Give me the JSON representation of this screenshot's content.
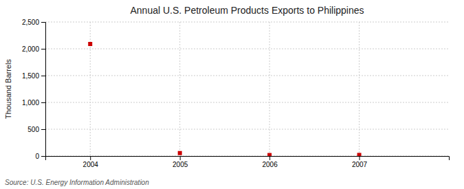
{
  "chart_data": {
    "type": "scatter",
    "title": "Annual U.S. Petroleum Products Exports to Philippines",
    "y_label": "Thousand Barrels",
    "annotations": [
      "Source: U.S. Energy Information Administration"
    ],
    "x": [
      2004,
      2005,
      2006,
      2007
    ],
    "values": [
      2090,
      55,
      18,
      20
    ],
    "color": "#cc0000",
    "marker": "square",
    "xlim": [
      2003.5,
      2008.0
    ],
    "xticks": [
      2004,
      2005,
      2006,
      2007
    ],
    "ylim": [
      0,
      2500
    ],
    "yticks": [
      0,
      500,
      {
        "value": 1000,
        "label": "1,000"
      },
      {
        "value": 1500,
        "label": "1,500"
      },
      {
        "value": 2000,
        "label": "2,000"
      },
      {
        "value": 2500,
        "label": "2,500"
      }
    ],
    "grid": true
  }
}
